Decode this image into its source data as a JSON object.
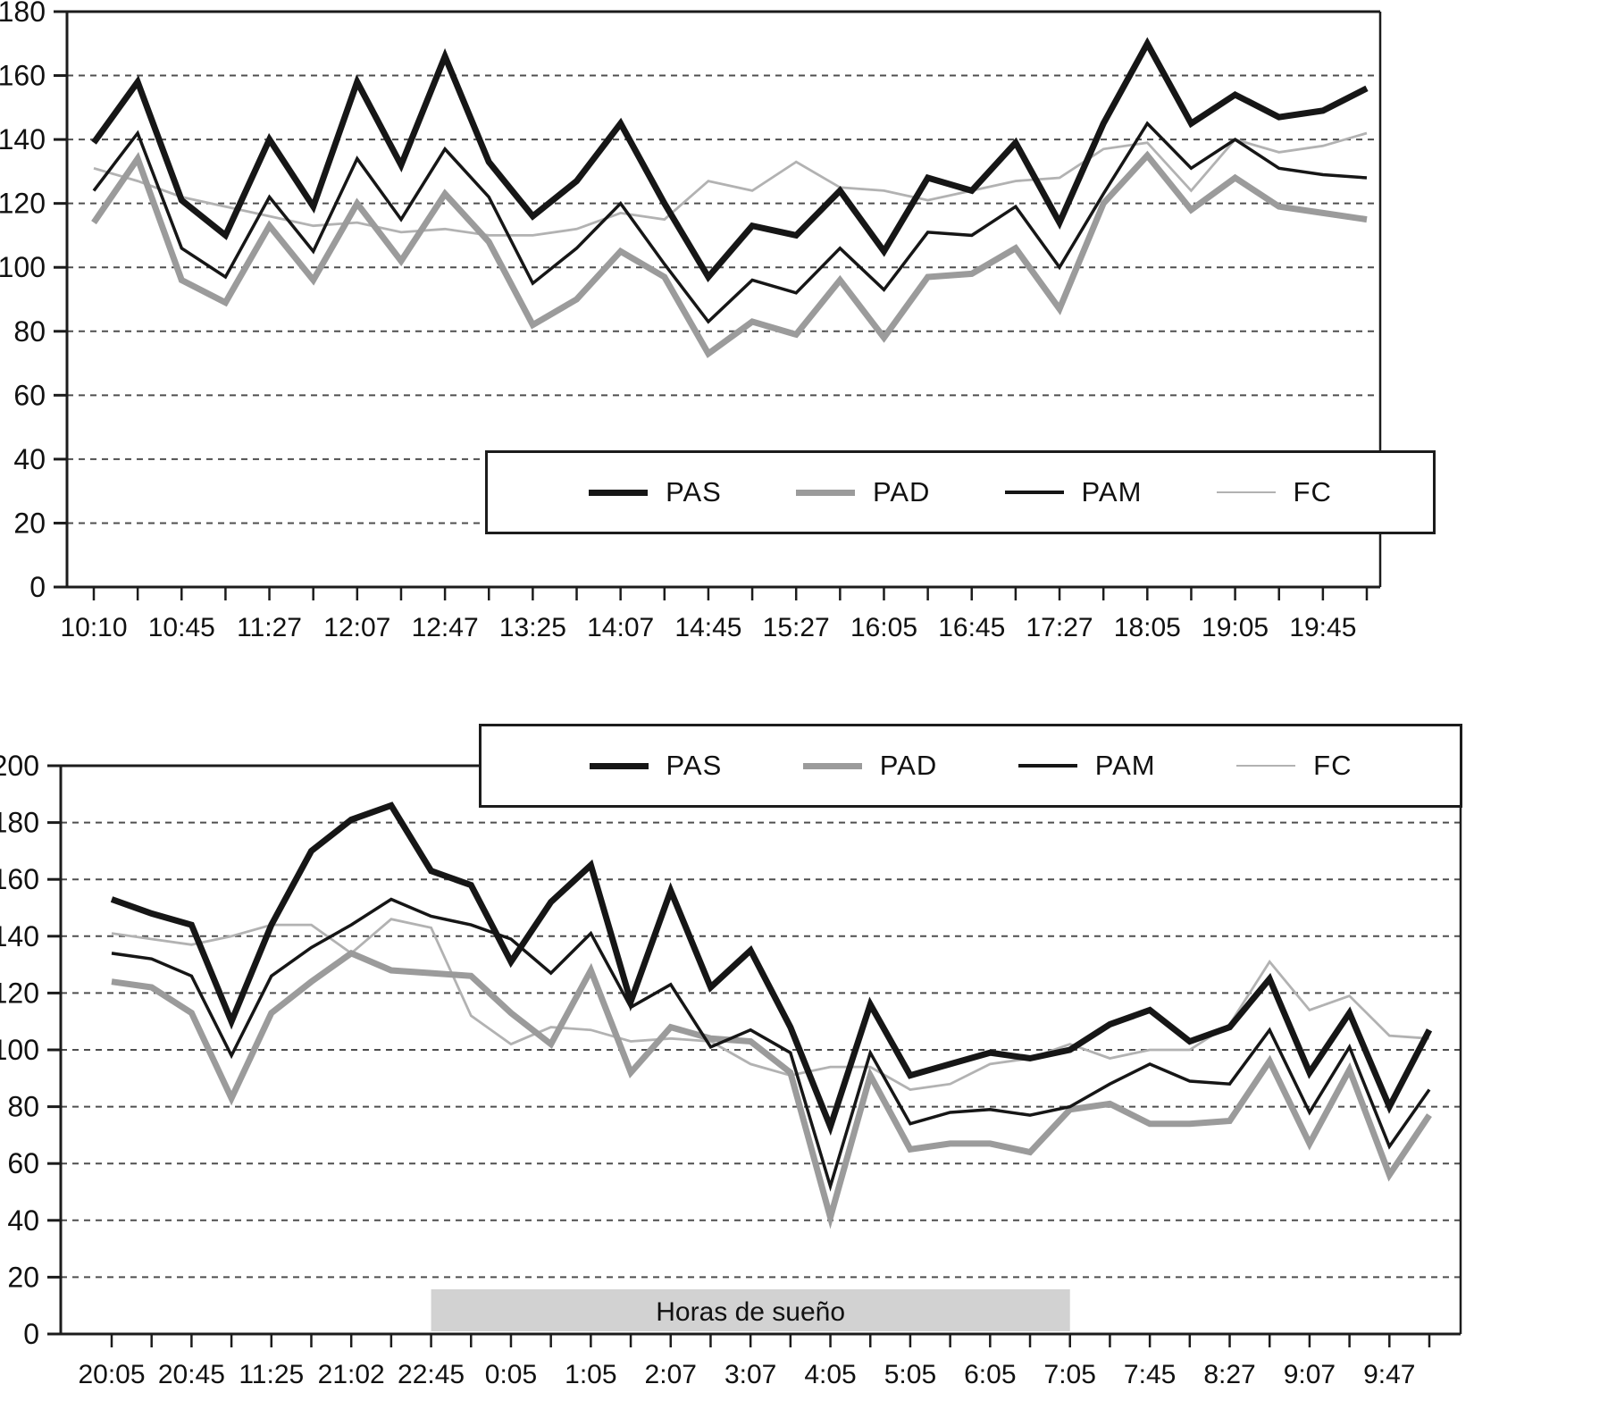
{
  "chart_data": [
    {
      "type": "line",
      "name": "day",
      "title": "",
      "xlabel": "",
      "ylabel": "",
      "grid": "horizontal-dashed",
      "legend_position": "inside-lower-middle",
      "y_axis": {
        "min": 0,
        "max": 180,
        "step": 20,
        "tick_labels": [
          "180",
          "160",
          "140",
          "120",
          "100",
          "80",
          "60",
          "40",
          "20",
          "0"
        ]
      },
      "x_tick_labels": [
        "10:10",
        "10:45",
        "11:27",
        "12:07",
        "12:47",
        "13:25",
        "14:07",
        "14:45",
        "15:27",
        "16:05",
        "16:45",
        "17:27",
        "18:05",
        "19:05",
        "19:45"
      ],
      "series": [
        {
          "name": "PAS",
          "color": "#161616",
          "width": 7,
          "values": [
            139,
            158,
            121,
            110,
            140,
            119,
            158,
            132,
            166,
            133,
            116,
            127,
            145,
            120,
            97,
            113,
            110,
            124,
            105,
            128,
            124,
            139,
            114,
            145,
            170,
            145,
            154,
            147,
            149,
            156
          ]
        },
        {
          "name": "PAD",
          "color": "#9b9b9b",
          "width": 7,
          "values": [
            114,
            134,
            96,
            89,
            113,
            96,
            120,
            102,
            123,
            108,
            82,
            90,
            105,
            97,
            73,
            83,
            79,
            96,
            78,
            97,
            98,
            106,
            87,
            120,
            135,
            118,
            128,
            119,
            117,
            115
          ]
        },
        {
          "name": "PAM",
          "color": "#161616",
          "width": 3.5,
          "values": [
            124,
            142,
            106,
            97,
            122,
            105,
            134,
            115,
            137,
            122,
            95,
            106,
            120,
            101,
            83,
            96,
            92,
            106,
            93,
            111,
            110,
            119,
            100,
            123,
            145,
            131,
            140,
            131,
            129,
            128
          ]
        },
        {
          "name": "FC",
          "color": "#b2b2b2",
          "width": 2.8,
          "values": [
            131,
            127,
            122,
            119,
            116,
            113,
            114,
            111,
            112,
            110,
            110,
            112,
            117,
            115,
            127,
            124,
            133,
            125,
            124,
            121,
            124,
            127,
            128,
            137,
            139,
            124,
            140,
            136,
            138,
            142
          ]
        }
      ]
    },
    {
      "type": "line",
      "name": "night",
      "title": "",
      "xlabel": "",
      "ylabel": "",
      "grid": "horizontal-dashed",
      "legend_position": "top-middle",
      "y_axis": {
        "min": 0,
        "max": 200,
        "step": 20,
        "tick_labels": [
          "200",
          "180",
          "160",
          "140",
          "120",
          "100",
          "80",
          "60",
          "40",
          "20",
          "0"
        ]
      },
      "x_tick_labels": [
        "20:05",
        "20:45",
        "11:25",
        "21:02",
        "22:45",
        "0:05",
        "1:05",
        "2:07",
        "3:07",
        "4:05",
        "5:05",
        "6:05",
        "7:05",
        "7:45",
        "8:27",
        "9:07",
        "9:47"
      ],
      "sleep_band": {
        "label": "Horas de sueño",
        "from_index": 8,
        "to_index": 24,
        "color": "#d2d2d2"
      },
      "series": [
        {
          "name": "PAS",
          "color": "#161616",
          "width": 7,
          "values": [
            153,
            148,
            144,
            110,
            144,
            170,
            181,
            186,
            163,
            158,
            131,
            152,
            165,
            117,
            156,
            122,
            135,
            108,
            73,
            116,
            91,
            95,
            99,
            97,
            100,
            109,
            114,
            103,
            108,
            125,
            92,
            113,
            80,
            107
          ]
        },
        {
          "name": "PAD",
          "color": "#9b9b9b",
          "width": 7,
          "values": [
            124,
            122,
            113,
            83,
            113,
            124,
            134,
            128,
            127,
            126,
            113,
            102,
            128,
            92,
            108,
            104,
            103,
            92,
            41,
            91,
            65,
            67,
            67,
            64,
            79,
            81,
            74,
            74,
            75,
            96,
            67,
            93,
            56,
            77
          ]
        },
        {
          "name": "PAM",
          "color": "#161616",
          "width": 3.5,
          "values": [
            134,
            132,
            126,
            98,
            126,
            136,
            144,
            153,
            147,
            144,
            139,
            127,
            141,
            115,
            123,
            101,
            107,
            99,
            52,
            99,
            74,
            78,
            79,
            77,
            80,
            88,
            95,
            89,
            88,
            107,
            78,
            101,
            66,
            86
          ]
        },
        {
          "name": "FC",
          "color": "#b2b2b2",
          "width": 2.8,
          "values": [
            141,
            139,
            137,
            140,
            144,
            144,
            134,
            146,
            143,
            112,
            102,
            108,
            107,
            103,
            104,
            103,
            95,
            91,
            94,
            94,
            86,
            88,
            95,
            97,
            102,
            97,
            100,
            100,
            109,
            131,
            114,
            119,
            105,
            104
          ]
        }
      ]
    }
  ],
  "style": {
    "grid_color": "#4f4f4f",
    "axis_color": "#1c1c1c",
    "label_color": "#111111",
    "background": "#ffffff"
  }
}
